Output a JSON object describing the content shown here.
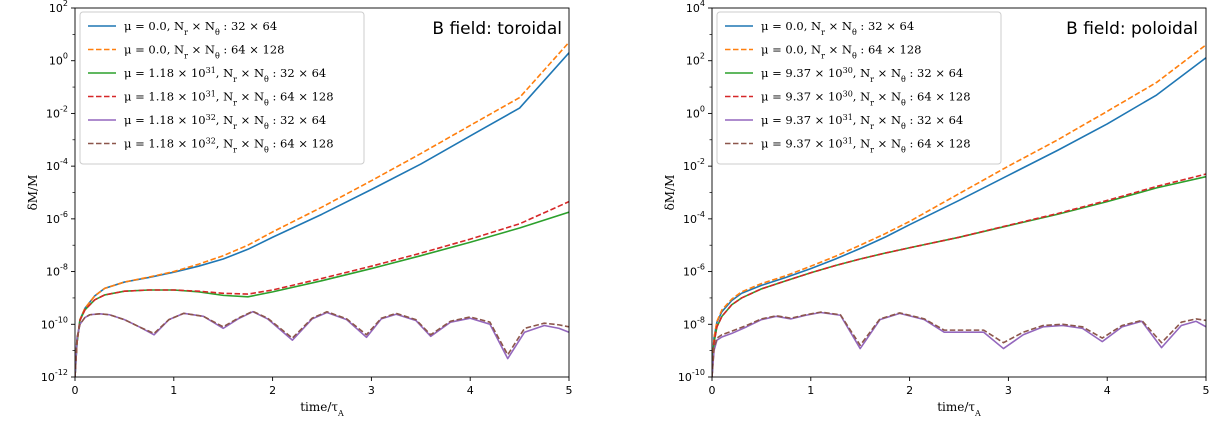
{
  "chart_data": [
    {
      "type": "line",
      "title": "B field: toroidal",
      "xlabel": "time/τ_A",
      "ylabel": "δM/M",
      "xlim": [
        0,
        5
      ],
      "ylim": [
        1e-12,
        100.0
      ],
      "yscale": "log",
      "xticks": [
        "0",
        "1",
        "2",
        "3",
        "4",
        "5"
      ],
      "yticks": [
        {
          "base": "10",
          "exp": "-12",
          "value": 1e-12
        },
        {
          "base": "10",
          "exp": "-10",
          "value": 1e-10
        },
        {
          "base": "10",
          "exp": "-8",
          "value": 1e-08
        },
        {
          "base": "10",
          "exp": "-6",
          "value": 1e-06
        },
        {
          "base": "10",
          "exp": "-4",
          "value": 0.0001
        },
        {
          "base": "10",
          "exp": "-2",
          "value": 0.01
        },
        {
          "base": "10",
          "exp": "0",
          "value": 1
        },
        {
          "base": "10",
          "exp": "2",
          "value": 100.0
        }
      ],
      "legend_position": "top-left",
      "series": [
        {
          "name": "μ = 0.0, N_r × N_θ : 32 × 64",
          "color": "#1f77b4",
          "dash": "solid",
          "x": [
            0,
            0.02,
            0.05,
            0.1,
            0.2,
            0.3,
            0.5,
            0.75,
            1.0,
            1.25,
            1.5,
            1.75,
            2.0,
            2.5,
            3.0,
            3.5,
            4.0,
            4.5,
            5.0
          ],
          "y": [
            1e-12,
            2e-11,
            1.5e-10,
            4e-10,
            1.2e-09,
            2.3e-09,
            4e-09,
            6e-09,
            9.5e-09,
            1.6e-08,
            3e-08,
            7e-08,
            2e-07,
            1.5e-06,
            1.3e-05,
            0.00012,
            0.0014,
            0.016,
            2.0
          ]
        },
        {
          "name": "μ = 0.0, N_r × N_θ : 64 × 128",
          "color": "#ff7f0e",
          "dash": "dashed",
          "x": [
            0,
            0.02,
            0.05,
            0.1,
            0.2,
            0.3,
            0.5,
            0.75,
            1.0,
            1.25,
            1.5,
            1.75,
            2.0,
            2.5,
            3.0,
            3.5,
            4.0,
            4.5,
            5.0
          ],
          "y": [
            1e-12,
            2e-11,
            1.5e-10,
            4e-10,
            1.2e-09,
            2.3e-09,
            4e-09,
            6.2e-09,
            1e-08,
            1.9e-08,
            4e-08,
            1e-07,
            3.2e-07,
            2.8e-06,
            2.8e-05,
            0.0003,
            0.0035,
            0.04,
            5.0
          ]
        },
        {
          "name": "μ = 1.18 × 10^31, N_r × N_θ : 32 × 64",
          "color": "#2ca02c",
          "dash": "solid",
          "x": [
            0,
            0.02,
            0.05,
            0.1,
            0.2,
            0.3,
            0.5,
            0.75,
            1.0,
            1.25,
            1.5,
            1.75,
            2.0,
            2.5,
            3.0,
            3.5,
            4.0,
            4.5,
            5.0
          ],
          "y": [
            1e-12,
            2e-11,
            1.4e-10,
            3.5e-10,
            8.5e-10,
            1.3e-09,
            1.8e-09,
            2e-09,
            2e-09,
            1.7e-09,
            1.25e-09,
            1.1e-09,
            1.7e-09,
            4.5e-09,
            1.3e-08,
            4e-08,
            1.3e-07,
            4.5e-07,
            1.8e-06
          ]
        },
        {
          "name": "μ = 1.18 × 10^31, N_r × N_θ : 64 × 128",
          "color": "#d62728",
          "dash": "dashed",
          "x": [
            0,
            0.02,
            0.05,
            0.1,
            0.2,
            0.3,
            0.5,
            0.75,
            1.0,
            1.25,
            1.5,
            1.75,
            2.0,
            2.5,
            3.0,
            3.5,
            4.0,
            4.5,
            5.0
          ],
          "y": [
            1e-12,
            2e-11,
            1.4e-10,
            3.5e-10,
            8.5e-10,
            1.3e-09,
            1.8e-09,
            2e-09,
            2e-09,
            1.8e-09,
            1.5e-09,
            1.4e-09,
            2e-09,
            5.5e-09,
            1.6e-08,
            5e-08,
            1.7e-07,
            6.5e-07,
            4.5e-06
          ]
        },
        {
          "name": "μ = 1.18 × 10^32, N_r × N_θ : 32 × 64",
          "color": "#9467bd",
          "dash": "solid",
          "x": [
            0,
            0.02,
            0.05,
            0.1,
            0.15,
            0.25,
            0.35,
            0.5,
            0.65,
            0.8,
            0.95,
            1.1,
            1.3,
            1.5,
            1.65,
            1.8,
            1.95,
            2.2,
            2.4,
            2.55,
            2.75,
            2.95,
            3.1,
            3.25,
            3.45,
            3.6,
            3.8,
            4.0,
            4.2,
            4.38,
            4.55,
            4.75,
            4.9,
            5.0
          ],
          "y": [
            1e-12,
            3e-11,
            1e-10,
            1.8e-10,
            2.3e-10,
            2.5e-10,
            2.3e-10,
            1.5e-10,
            8e-11,
            4e-11,
            1.5e-10,
            2.6e-10,
            2e-10,
            7e-11,
            1.6e-10,
            3e-10,
            1.6e-10,
            2.5e-11,
            1.6e-10,
            2.8e-10,
            1.5e-10,
            3.2e-11,
            1.6e-10,
            2.4e-10,
            1.4e-10,
            3.5e-11,
            1.2e-10,
            1.7e-10,
            1e-10,
            5e-12,
            5e-11,
            9e-11,
            7e-11,
            5e-11
          ]
        },
        {
          "name": "μ = 1.18 × 10^32, N_r × N_θ : 64 × 128",
          "color": "#8c564b",
          "dash": "dashed",
          "x": [
            0,
            0.02,
            0.05,
            0.1,
            0.15,
            0.25,
            0.35,
            0.5,
            0.65,
            0.8,
            0.95,
            1.1,
            1.3,
            1.5,
            1.65,
            1.8,
            1.95,
            2.2,
            2.4,
            2.55,
            2.75,
            2.95,
            3.1,
            3.25,
            3.45,
            3.6,
            3.8,
            4.0,
            4.2,
            4.38,
            4.55,
            4.75,
            4.9,
            5.0
          ],
          "y": [
            1e-12,
            3e-11,
            1e-10,
            1.8e-10,
            2.3e-10,
            2.5e-10,
            2.3e-10,
            1.5e-10,
            8e-11,
            4.5e-11,
            1.5e-10,
            2.6e-10,
            2e-10,
            8e-11,
            1.7e-10,
            3.1e-10,
            1.7e-10,
            3e-11,
            1.7e-10,
            3e-10,
            1.6e-10,
            4e-11,
            1.7e-10,
            2.6e-10,
            1.5e-10,
            4e-11,
            1.3e-10,
            1.9e-10,
            1.2e-10,
            7e-12,
            7e-11,
            1.1e-10,
            9.5e-11,
            8e-11
          ]
        }
      ]
    },
    {
      "type": "line",
      "title": "B field: poloidal",
      "xlabel": "time/τ_A",
      "ylabel": "δM/M",
      "xlim": [
        0,
        5
      ],
      "ylim": [
        1e-10,
        10000.0
      ],
      "yscale": "log",
      "xticks": [
        "0",
        "1",
        "2",
        "3",
        "4",
        "5"
      ],
      "yticks": [
        {
          "base": "10",
          "exp": "-10",
          "value": 1e-10
        },
        {
          "base": "10",
          "exp": "-8",
          "value": 1e-08
        },
        {
          "base": "10",
          "exp": "-6",
          "value": 1e-06
        },
        {
          "base": "10",
          "exp": "-4",
          "value": 0.0001
        },
        {
          "base": "10",
          "exp": "-2",
          "value": 0.01
        },
        {
          "base": "10",
          "exp": "0",
          "value": 1
        },
        {
          "base": "10",
          "exp": "2",
          "value": 100.0
        },
        {
          "base": "10",
          "exp": "4",
          "value": 10000.0
        }
      ],
      "legend_position": "top-left",
      "series": [
        {
          "name": "μ = 0.0, N_r × N_θ : 32 × 64",
          "color": "#1f77b4",
          "dash": "solid",
          "x": [
            0,
            0.02,
            0.05,
            0.1,
            0.2,
            0.3,
            0.5,
            0.75,
            1.0,
            1.25,
            1.5,
            1.75,
            2.0,
            2.5,
            3.0,
            3.5,
            4.0,
            4.5,
            5.0
          ],
          "y": [
            1e-10,
            3e-09,
            1.2e-08,
            3e-08,
            8e-08,
            1.5e-07,
            3e-07,
            6e-07,
            1.3e-06,
            3e-06,
            7.5e-06,
            2e-05,
            6e-05,
            0.0005,
            0.0045,
            0.04,
            0.4,
            5.0,
            130.0
          ]
        },
        {
          "name": "μ = 0.0, N_r × N_θ : 64 × 128",
          "color": "#ff7f0e",
          "dash": "dashed",
          "x": [
            0,
            0.02,
            0.05,
            0.1,
            0.2,
            0.3,
            0.5,
            0.75,
            1.0,
            1.25,
            1.5,
            1.75,
            2.0,
            2.5,
            3.0,
            3.5,
            4.0,
            4.5,
            5.0
          ],
          "y": [
            1e-10,
            3e-09,
            1.3e-08,
            3.5e-08,
            9e-08,
            1.7e-07,
            3.5e-07,
            7e-07,
            1.6e-06,
            3.8e-06,
            1e-05,
            2.7e-05,
            8e-05,
            0.0009,
            0.01,
            0.1,
            1.2,
            15.0,
            400.0
          ]
        },
        {
          "name": "μ = 9.37 × 10^30, N_r × N_θ : 32 × 64",
          "color": "#2ca02c",
          "dash": "solid",
          "x": [
            0,
            0.02,
            0.05,
            0.1,
            0.2,
            0.3,
            0.5,
            0.75,
            1.0,
            1.25,
            1.5,
            1.75,
            2.0,
            2.5,
            3.0,
            3.5,
            4.0,
            4.5,
            5.0
          ],
          "y": [
            1e-10,
            2e-09,
            8e-09,
            2e-08,
            5.5e-08,
            1e-07,
            2.2e-07,
            4.5e-07,
            9e-07,
            1.7e-06,
            3e-06,
            5e-06,
            8e-06,
            2e-05,
            5.5e-05,
            0.00015,
            0.00045,
            0.0015,
            0.004
          ]
        },
        {
          "name": "μ = 9.37 × 10^30, N_r × N_θ : 64 × 128",
          "color": "#d62728",
          "dash": "dashed",
          "x": [
            0,
            0.02,
            0.05,
            0.1,
            0.2,
            0.3,
            0.5,
            0.75,
            1.0,
            1.25,
            1.5,
            1.75,
            2.0,
            2.5,
            3.0,
            3.5,
            4.0,
            4.5,
            5.0
          ],
          "y": [
            1e-10,
            2e-09,
            8e-09,
            2e-08,
            5.5e-08,
            1e-07,
            2.2e-07,
            4.5e-07,
            9e-07,
            1.7e-06,
            3e-06,
            5e-06,
            8e-06,
            2e-05,
            5.7e-05,
            0.00016,
            0.0005,
            0.0017,
            0.005
          ]
        },
        {
          "name": "μ = 9.37 × 10^31, N_r × N_θ : 32 × 64",
          "color": "#9467bd",
          "dash": "solid",
          "x": [
            0,
            0.02,
            0.05,
            0.1,
            0.2,
            0.35,
            0.5,
            0.65,
            0.8,
            0.95,
            1.1,
            1.3,
            1.5,
            1.7,
            1.9,
            2.15,
            2.35,
            2.55,
            2.75,
            2.95,
            3.15,
            3.35,
            3.55,
            3.75,
            3.95,
            4.15,
            4.35,
            4.55,
            4.75,
            4.9,
            5.0
          ],
          "y": [
            1e-10,
            1e-09,
            2.5e-09,
            3.3e-09,
            4.5e-09,
            8e-09,
            1.5e-08,
            2e-08,
            1.6e-08,
            2.2e-08,
            2.8e-08,
            2.2e-08,
            1.2e-09,
            1.5e-08,
            2.6e-08,
            1.5e-08,
            5e-09,
            5e-09,
            5e-09,
            1.2e-09,
            4e-09,
            8e-09,
            9e-09,
            7e-09,
            2.2e-09,
            8e-09,
            1.3e-08,
            1.3e-09,
            9e-09,
            1.3e-08,
            8e-09
          ]
        },
        {
          "name": "μ = 9.37 × 10^31, N_r × N_θ : 64 × 128",
          "color": "#8c564b",
          "dash": "dashed",
          "x": [
            0,
            0.02,
            0.05,
            0.1,
            0.2,
            0.35,
            0.5,
            0.65,
            0.8,
            0.95,
            1.1,
            1.3,
            1.5,
            1.7,
            1.9,
            2.15,
            2.35,
            2.55,
            2.75,
            2.95,
            3.15,
            3.35,
            3.55,
            3.75,
            3.95,
            4.15,
            4.35,
            4.55,
            4.75,
            4.9,
            5.0
          ],
          "y": [
            1e-10,
            1.2e-09,
            3e-09,
            4e-09,
            5.5e-09,
            9e-09,
            1.6e-08,
            2.1e-08,
            1.7e-08,
            2.3e-08,
            2.9e-08,
            2.3e-08,
            1.6e-09,
            1.6e-08,
            2.7e-08,
            1.6e-08,
            6e-09,
            6e-09,
            6e-09,
            2e-09,
            5e-09,
            9e-09,
            1e-08,
            8e-09,
            3e-09,
            9e-09,
            1.4e-08,
            2e-09,
            1.2e-08,
            1.6e-08,
            1.4e-08
          ]
        }
      ]
    }
  ]
}
